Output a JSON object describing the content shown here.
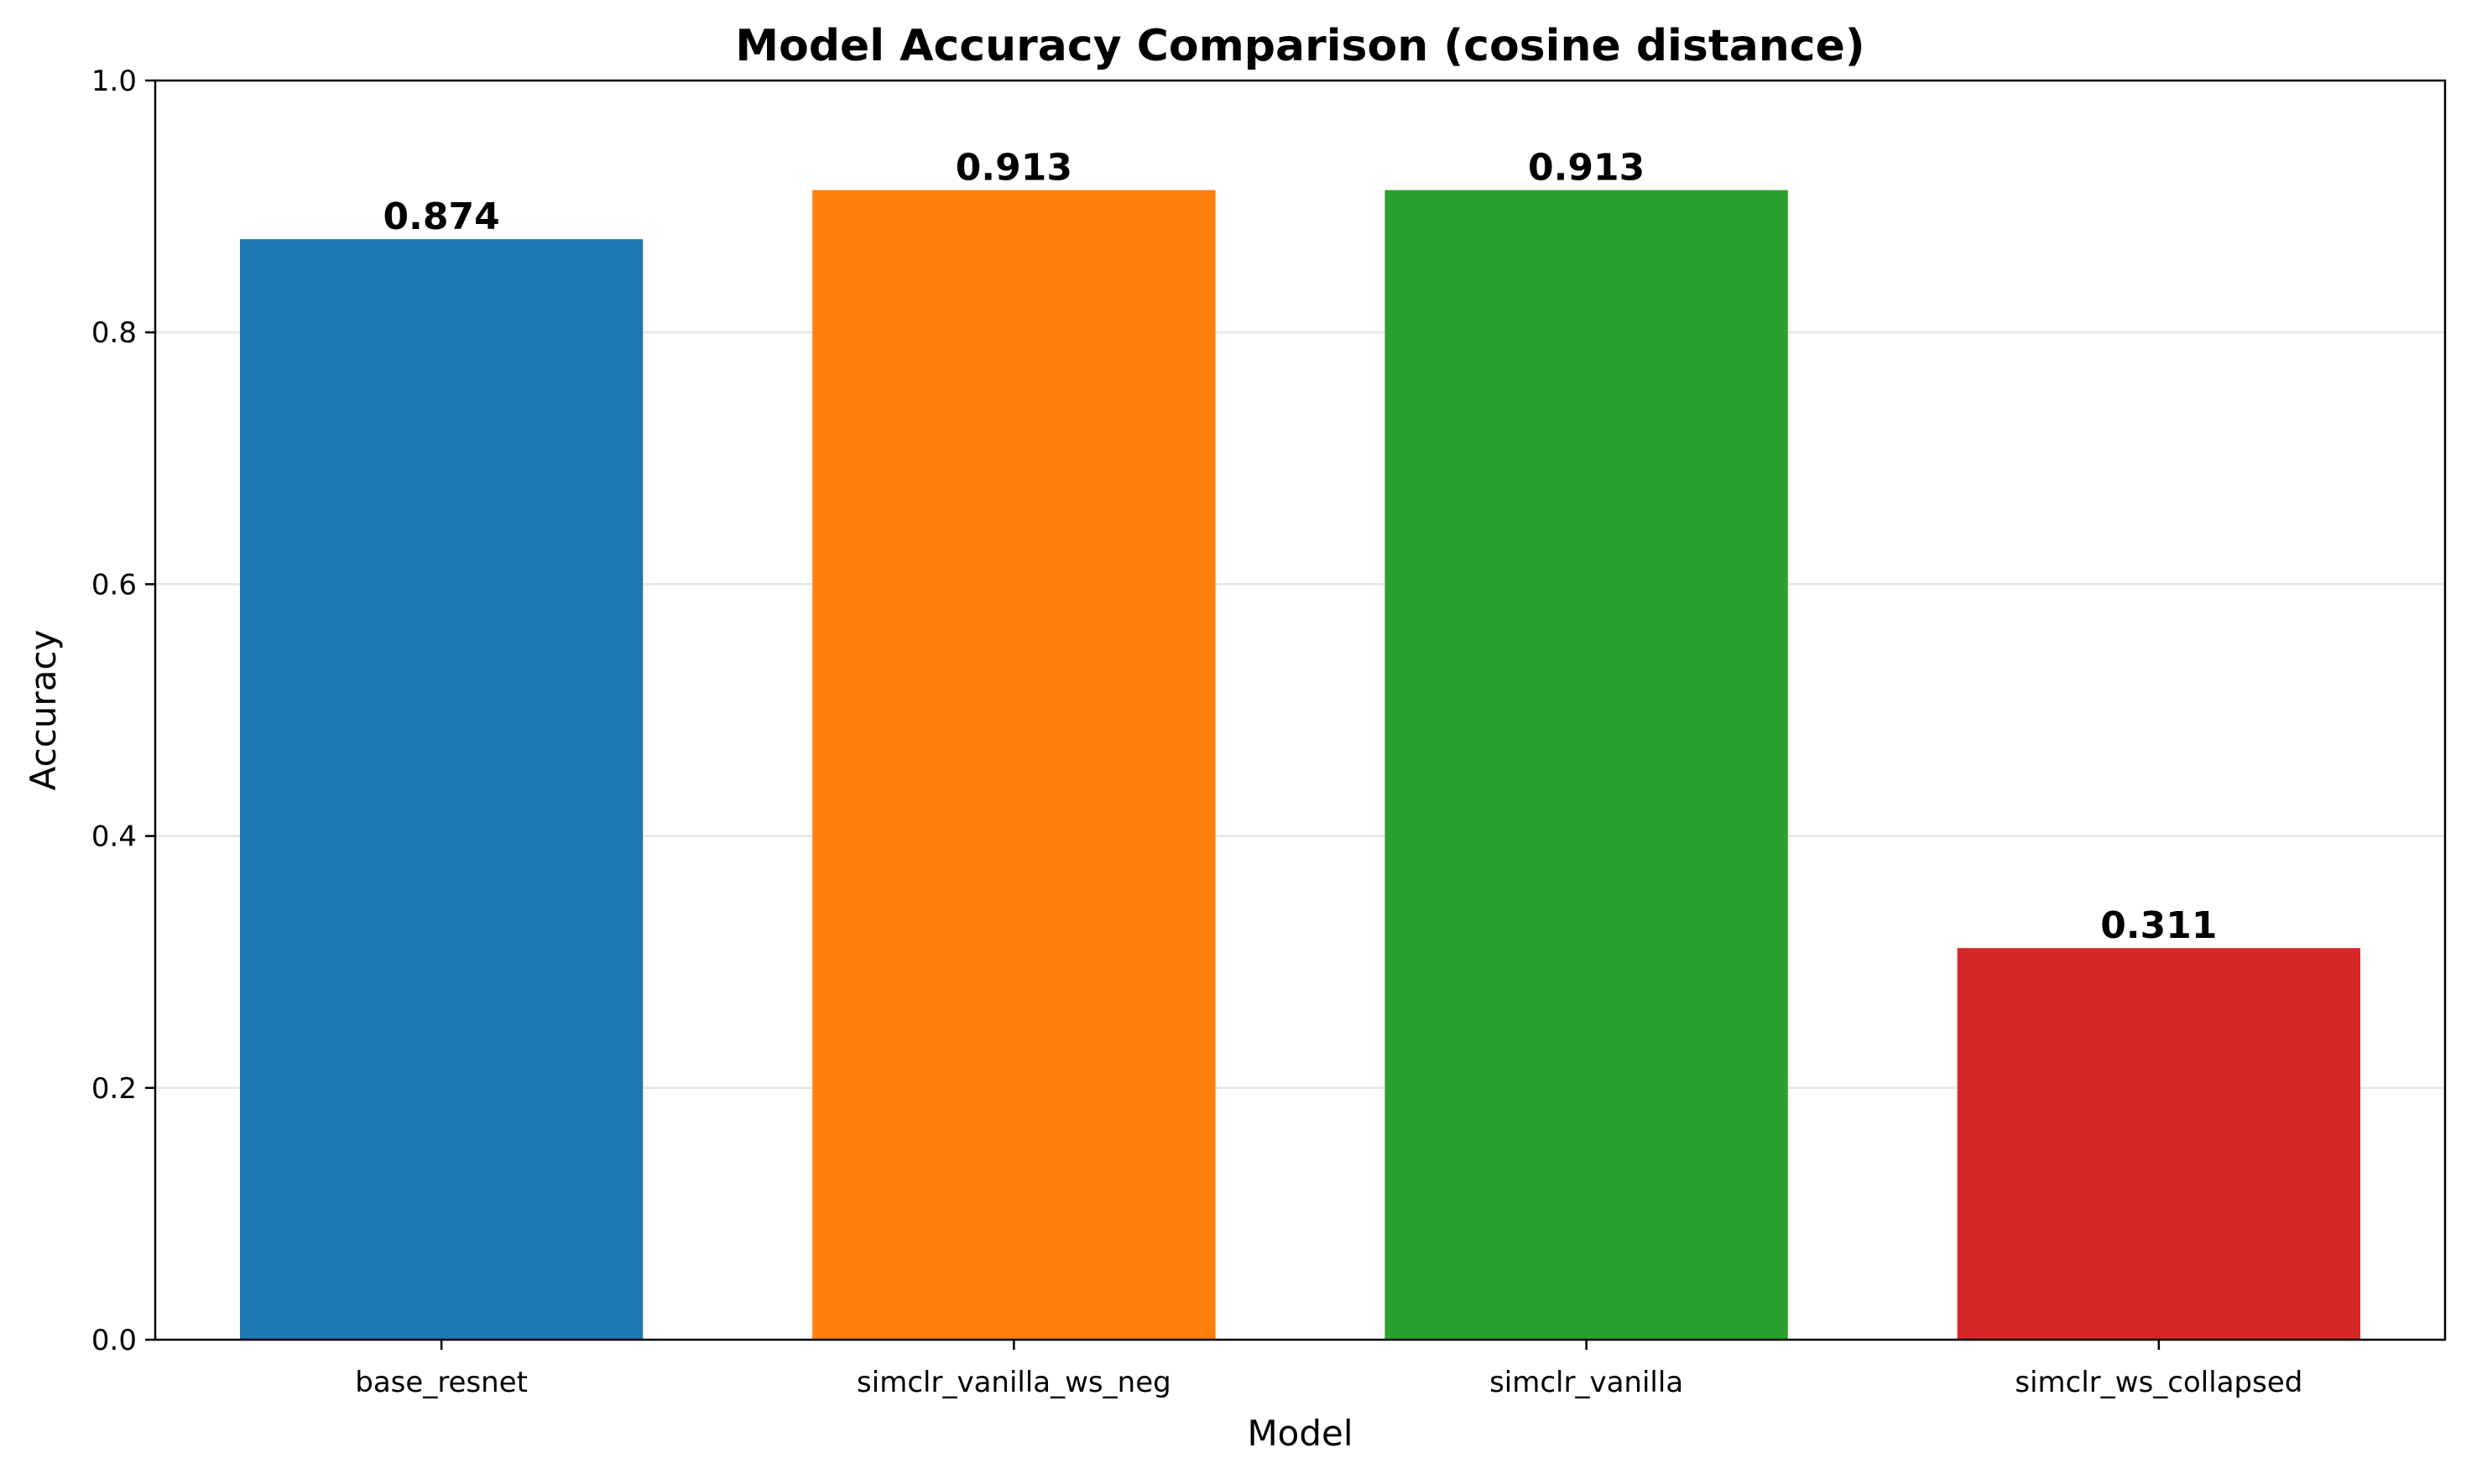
{
  "chart_data": {
    "type": "bar",
    "title": "Model Accuracy Comparison (cosine distance)",
    "xlabel": "Model",
    "ylabel": "Accuracy",
    "categories": [
      "base_resnet",
      "simclr_vanilla_ws_neg",
      "simclr_vanilla",
      "simclr_ws_collapsed"
    ],
    "values": [
      0.874,
      0.913,
      0.913,
      0.311
    ],
    "value_labels": [
      "0.874",
      "0.913",
      "0.913",
      "0.311"
    ],
    "colors": [
      "#1f77b4",
      "#ff7f0e",
      "#2ca02c",
      "#d62728"
    ],
    "ylim": [
      0,
      1.0
    ],
    "yticks": [
      0.0,
      0.2,
      0.4,
      0.6,
      0.8,
      1.0
    ],
    "ytick_labels": [
      "0.0",
      "0.2",
      "0.4",
      "0.6",
      "0.8",
      "1.0"
    ],
    "grid": "y",
    "legend": "none"
  }
}
